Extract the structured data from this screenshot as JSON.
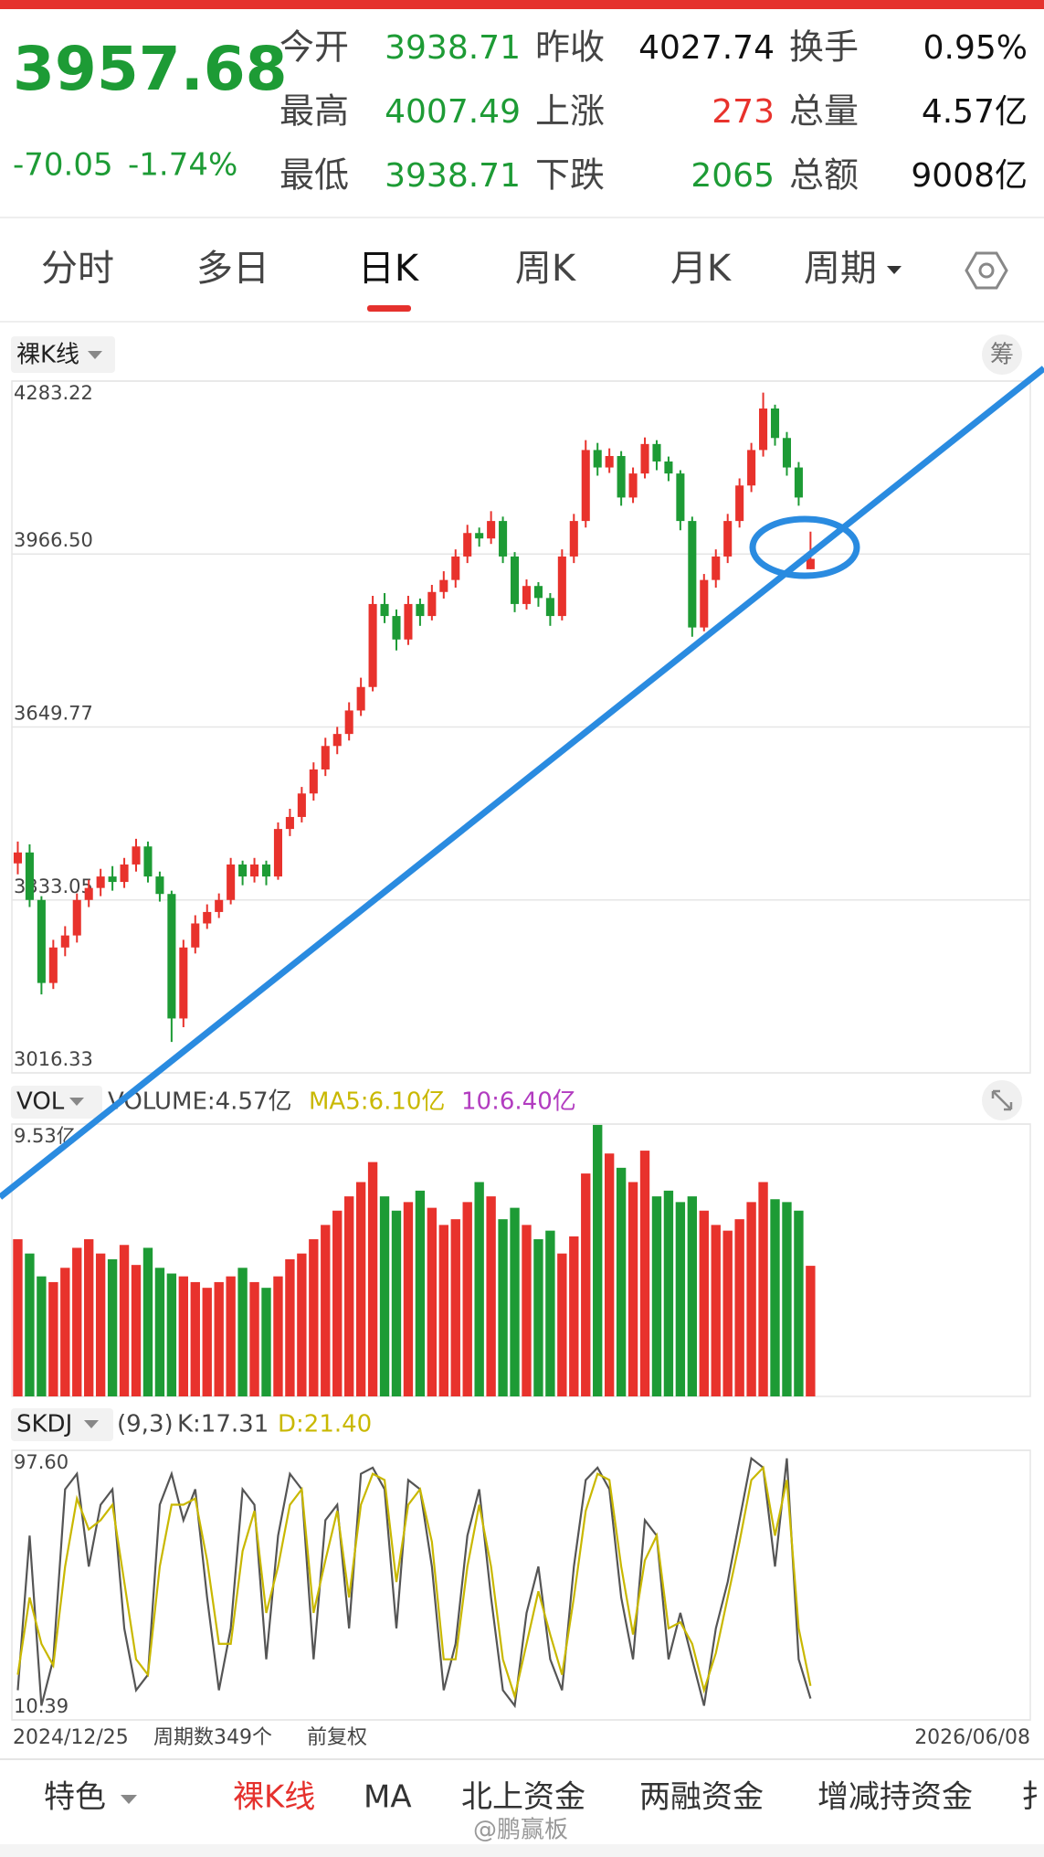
{
  "header": {
    "price": "3957.68",
    "change": "-70.05",
    "change_pct": "-1.74%",
    "stats": [
      [
        {
          "label": "今开",
          "value": "3938.71",
          "color": "#1d9b35"
        },
        {
          "label": "昨收",
          "value": "4027.74",
          "color": "#111"
        },
        {
          "label": "换手",
          "value": "0.95%",
          "color": "#111"
        }
      ],
      [
        {
          "label": "最高",
          "value": "4007.49",
          "color": "#1d9b35"
        },
        {
          "label": "上涨",
          "value": "273",
          "color": "#e8322c"
        },
        {
          "label": "总量",
          "value": "4.57亿",
          "color": "#111"
        }
      ],
      [
        {
          "label": "最低",
          "value": "3938.71",
          "color": "#1d9b35"
        },
        {
          "label": "下跌",
          "value": "2065",
          "color": "#1d9b35"
        },
        {
          "label": "总额",
          "value": "9008亿",
          "color": "#111"
        }
      ]
    ]
  },
  "tabs": [
    "分时",
    "多日",
    "日K",
    "周K",
    "月K",
    "周期"
  ],
  "chart_data": {
    "type": "candlestick",
    "indicator": "裸K线",
    "side_button": "筹",
    "colors": {
      "up": "#e8322c",
      "down": "#1d9b35"
    },
    "ylim": [
      3016.33,
      4283.22
    ],
    "yticks": [
      4283.22,
      {
        "value": 3966.5,
        "label": "3966.50"
      },
      3649.77,
      3333.05,
      3016.33
    ],
    "candles": [
      [
        3400,
        3440,
        3380,
        3420
      ],
      [
        3420,
        3435,
        3320,
        3333
      ],
      [
        3333,
        3340,
        3160,
        3181
      ],
      [
        3181,
        3260,
        3170,
        3246
      ],
      [
        3246,
        3285,
        3230,
        3268
      ],
      [
        3268,
        3345,
        3255,
        3333
      ],
      [
        3333,
        3370,
        3320,
        3355
      ],
      [
        3355,
        3390,
        3340,
        3376
      ],
      [
        3376,
        3395,
        3350,
        3366
      ],
      [
        3366,
        3410,
        3355,
        3398
      ],
      [
        3398,
        3445,
        3385,
        3431
      ],
      [
        3431,
        3440,
        3365,
        3376
      ],
      [
        3376,
        3385,
        3330,
        3344
      ],
      [
        3344,
        3350,
        3073,
        3116
      ],
      [
        3116,
        3260,
        3100,
        3246
      ],
      [
        3246,
        3305,
        3235,
        3290
      ],
      [
        3290,
        3325,
        3280,
        3311
      ],
      [
        3311,
        3345,
        3300,
        3333
      ],
      [
        3333,
        3410,
        3325,
        3398
      ],
      [
        3398,
        3405,
        3360,
        3376
      ],
      [
        3376,
        3410,
        3365,
        3398
      ],
      [
        3398,
        3405,
        3360,
        3376
      ],
      [
        3376,
        3475,
        3370,
        3463
      ],
      [
        3463,
        3500,
        3450,
        3485
      ],
      [
        3485,
        3540,
        3475,
        3528
      ],
      [
        3528,
        3585,
        3515,
        3572
      ],
      [
        3572,
        3630,
        3560,
        3615
      ],
      [
        3615,
        3650,
        3600,
        3637
      ],
      [
        3637,
        3695,
        3625,
        3680
      ],
      [
        3680,
        3740,
        3670,
        3723
      ],
      [
        3723,
        3890,
        3715,
        3875
      ],
      [
        3875,
        3895,
        3840,
        3853
      ],
      [
        3853,
        3865,
        3790,
        3810
      ],
      [
        3810,
        3890,
        3800,
        3875
      ],
      [
        3875,
        3885,
        3835,
        3853
      ],
      [
        3853,
        3910,
        3845,
        3897
      ],
      [
        3897,
        3935,
        3885,
        3919
      ],
      [
        3919,
        3975,
        3905,
        3962
      ],
      [
        3962,
        4020,
        3950,
        4005
      ],
      [
        4005,
        4015,
        3980,
        3995
      ],
      [
        3995,
        4045,
        3985,
        4027
      ],
      [
        4027,
        4035,
        3950,
        3962
      ],
      [
        3962,
        3970,
        3860,
        3875
      ],
      [
        3875,
        3920,
        3865,
        3908
      ],
      [
        3908,
        3915,
        3870,
        3886
      ],
      [
        3886,
        3895,
        3835,
        3853
      ],
      [
        3853,
        3975,
        3845,
        3962
      ],
      [
        3962,
        4040,
        3950,
        4027
      ],
      [
        4027,
        4175,
        4015,
        4157
      ],
      [
        4157,
        4170,
        4110,
        4125
      ],
      [
        4125,
        4160,
        4115,
        4146
      ],
      [
        4146,
        4155,
        4055,
        4070
      ],
      [
        4070,
        4125,
        4060,
        4114
      ],
      [
        4114,
        4180,
        4105,
        4168
      ],
      [
        4168,
        4175,
        4120,
        4136
      ],
      [
        4136,
        4145,
        4100,
        4114
      ],
      [
        4114,
        4120,
        4010,
        4027
      ],
      [
        4027,
        4035,
        3815,
        3832
      ],
      [
        3832,
        3930,
        3825,
        3919
      ],
      [
        3919,
        3975,
        3905,
        3962
      ],
      [
        3962,
        4040,
        3950,
        4027
      ],
      [
        4027,
        4105,
        4015,
        4092
      ],
      [
        4092,
        4170,
        4080,
        4157
      ],
      [
        4157,
        4262,
        4145,
        4233
      ],
      [
        4233,
        4240,
        4165,
        4179
      ],
      [
        4179,
        4190,
        4110,
        4125
      ],
      [
        4125,
        4135,
        4055,
        4070
      ],
      [
        3938.71,
        4007.49,
        3938.71,
        3957.68
      ]
    ],
    "volume": {
      "label": "VOL",
      "text": "VOLUME:4.57亿",
      "ma5": "MA5:6.10亿",
      "ma10": "10:6.40亿",
      "ylim": [
        0,
        9.53
      ],
      "yticks": [
        {
          "value": 9.53,
          "label": "9.53亿"
        }
      ],
      "values": [
        5.5,
        5.0,
        4.2,
        4.0,
        4.5,
        5.2,
        5.5,
        5.0,
        4.8,
        5.3,
        4.6,
        5.2,
        4.5,
        4.3,
        4.2,
        4.0,
        3.8,
        4.0,
        4.2,
        4.5,
        4.0,
        3.8,
        4.2,
        4.8,
        5.0,
        5.5,
        6.0,
        6.5,
        7.0,
        7.5,
        8.2,
        7.0,
        6.5,
        6.8,
        7.2,
        6.6,
        6.0,
        6.2,
        6.8,
        7.5,
        7.0,
        6.2,
        6.6,
        6.0,
        5.5,
        5.8,
        5.0,
        5.6,
        7.8,
        9.5,
        8.5,
        8.0,
        7.5,
        8.6,
        7.0,
        7.2,
        6.8,
        7.0,
        6.5,
        6.0,
        5.8,
        6.2,
        6.8,
        7.5,
        6.9,
        6.8,
        6.5,
        4.57
      ]
    },
    "skdj": {
      "label": "SKDJ",
      "params": "(9,3)",
      "k_label": "K:17.31",
      "d_label": "D:21.40",
      "ylim": [
        10.39,
        97.6
      ],
      "yticks": [
        {
          "value": 97.6,
          "label": "97.60"
        },
        10.39
      ],
      "series": [
        {
          "color": "#555555",
          "values": [
            20,
            70,
            15,
            30,
            85,
            90,
            60,
            80,
            85,
            40,
            20,
            25,
            80,
            90,
            75,
            85,
            50,
            20,
            40,
            85,
            80,
            30,
            70,
            90,
            85,
            30,
            75,
            80,
            40,
            90,
            92,
            85,
            40,
            88,
            85,
            60,
            20,
            35,
            70,
            85,
            50,
            20,
            15,
            45,
            60,
            30,
            20,
            60,
            88,
            92,
            85,
            50,
            30,
            75,
            70,
            30,
            45,
            30,
            15,
            40,
            55,
            75,
            95,
            92,
            60,
            95,
            30,
            17.31
          ]
        },
        {
          "color": "#c9b800",
          "values": [
            25,
            50,
            35,
            28,
            60,
            82,
            72,
            75,
            80,
            55,
            30,
            25,
            60,
            80,
            80,
            82,
            62,
            35,
            35,
            65,
            78,
            45,
            60,
            80,
            85,
            45,
            62,
            78,
            50,
            80,
            90,
            88,
            55,
            80,
            85,
            68,
            30,
            30,
            60,
            80,
            60,
            30,
            18,
            35,
            52,
            38,
            25,
            50,
            78,
            90,
            88,
            60,
            38,
            62,
            70,
            40,
            42,
            35,
            20,
            32,
            50,
            68,
            88,
            92,
            70,
            88,
            40,
            21.4
          ]
        }
      ]
    },
    "x_start": "2024/12/25",
    "period_count": "周期数349个",
    "adjust": "前复权",
    "x_end": "2026/06/08"
  },
  "bottom_tabs": [
    "特色",
    "裸K线",
    "MA",
    "北上资金",
    "两融资金",
    "增减持资金",
    "扌"
  ],
  "watermark": "@鹏赢板"
}
